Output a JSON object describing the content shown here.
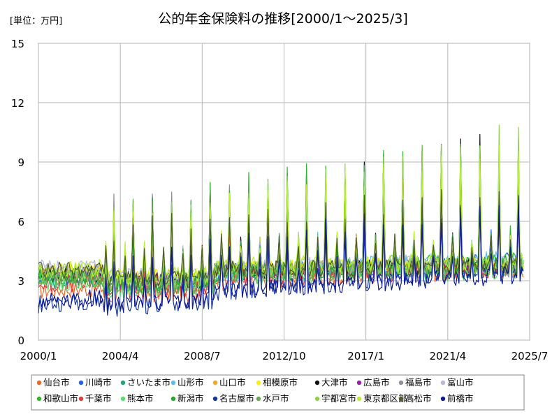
{
  "chart_data": {
    "type": "line",
    "title": "公的年金保険料の推移[2000/1～2025/3]",
    "unit_label": "[単位：万円]",
    "x_ticks": [
      "2000/1",
      "2004/4",
      "2008/7",
      "2012/10",
      "2017/1",
      "2021/4",
      "2025/7"
    ],
    "x_range": [
      "2000-01",
      "2025-07"
    ],
    "y_ticks": [
      "0",
      "3",
      "6",
      "9",
      "12",
      "15"
    ],
    "ylim": [
      0,
      15
    ],
    "grid": true,
    "legend_position": "bottom",
    "pattern_note": "monthly values; December spikes each year",
    "series": [
      {
        "name": "仙台市",
        "color": "#f26522",
        "start": 2.5,
        "end": 3.6,
        "peak_start": 5.0,
        "peak_end": 8.5
      },
      {
        "name": "川崎市",
        "color": "#1f5fff",
        "start": 3.1,
        "end": 4.0,
        "peak_start": 6.0,
        "peak_end": 9.5
      },
      {
        "name": "さいたま市",
        "color": "#1aa57a",
        "start": 3.0,
        "end": 3.8,
        "peak_start": 6.2,
        "peak_end": 9.7
      },
      {
        "name": "山形市",
        "color": "#5bbcf5",
        "start": 3.2,
        "end": 4.1,
        "peak_start": 5.5,
        "peak_end": 9.9
      },
      {
        "name": "山口市",
        "color": "#f5a623",
        "start": 3.4,
        "end": 3.7,
        "peak_start": 5.8,
        "peak_end": 8.8
      },
      {
        "name": "相模原市",
        "color": "#ffee00",
        "start": 3.5,
        "end": 3.9,
        "peak_start": 5.4,
        "peak_end": 9.6
      },
      {
        "name": "大津市",
        "color": "#111111",
        "start": 3.3,
        "end": 3.8,
        "peak_start": 5.6,
        "peak_end": 10.5
      },
      {
        "name": "広島市",
        "color": "#9b1fa8",
        "start": 3.3,
        "end": 3.7,
        "peak_start": 4.5,
        "peak_end": 6.5
      },
      {
        "name": "福島市",
        "color": "#8a8f99",
        "start": 3.4,
        "end": 3.6,
        "peak_start": 6.4,
        "peak_end": 9.2
      },
      {
        "name": "富山市",
        "color": "#b7b9d6",
        "start": 3.6,
        "end": 3.9,
        "peak_start": 4.8,
        "peak_end": 7.0
      },
      {
        "name": "和歌山市",
        "color": "#2db82d",
        "start": 3.2,
        "end": 4.0,
        "peak_start": 6.0,
        "peak_end": 10.4
      },
      {
        "name": "千葉市",
        "color": "#e8363d",
        "start": 2.8,
        "end": 3.6,
        "peak_start": 5.0,
        "peak_end": 7.8
      },
      {
        "name": "熊本市",
        "color": "#52e06a",
        "start": 2.9,
        "end": 3.5,
        "peak_start": 4.9,
        "peak_end": 8.0
      },
      {
        "name": "新潟市",
        "color": "#27a82f",
        "start": 3.1,
        "end": 3.8,
        "peak_start": 5.6,
        "peak_end": 9.4
      },
      {
        "name": "名古屋市",
        "color": "#1535a8",
        "start": 1.8,
        "end": 3.5,
        "peak_start": 3.2,
        "peak_end": 7.2
      },
      {
        "name": "水戸市",
        "color": "#6aa84f",
        "start": 3.0,
        "end": 3.7,
        "peak_start": 6.1,
        "peak_end": 8.7
      },
      {
        "name": "宇都宮市",
        "color": "#93d24f",
        "start": 3.4,
        "end": 3.8,
        "peak_start": 5.5,
        "peak_end": 10.7
      },
      {
        "name": "東京都区部",
        "color": "#b8f02a",
        "start": 3.6,
        "end": 4.0,
        "peak_start": 5.3,
        "peak_end": 9.8
      },
      {
        "name": "高松市",
        "color": "#4f5b2a",
        "start": 3.5,
        "end": 3.7,
        "peak_start": 5.2,
        "peak_end": 7.5
      },
      {
        "name": "前橋市",
        "color": "#0d1a99",
        "start": 2.0,
        "end": 3.3,
        "peak_start": 3.5,
        "peak_end": 7.0
      }
    ]
  }
}
